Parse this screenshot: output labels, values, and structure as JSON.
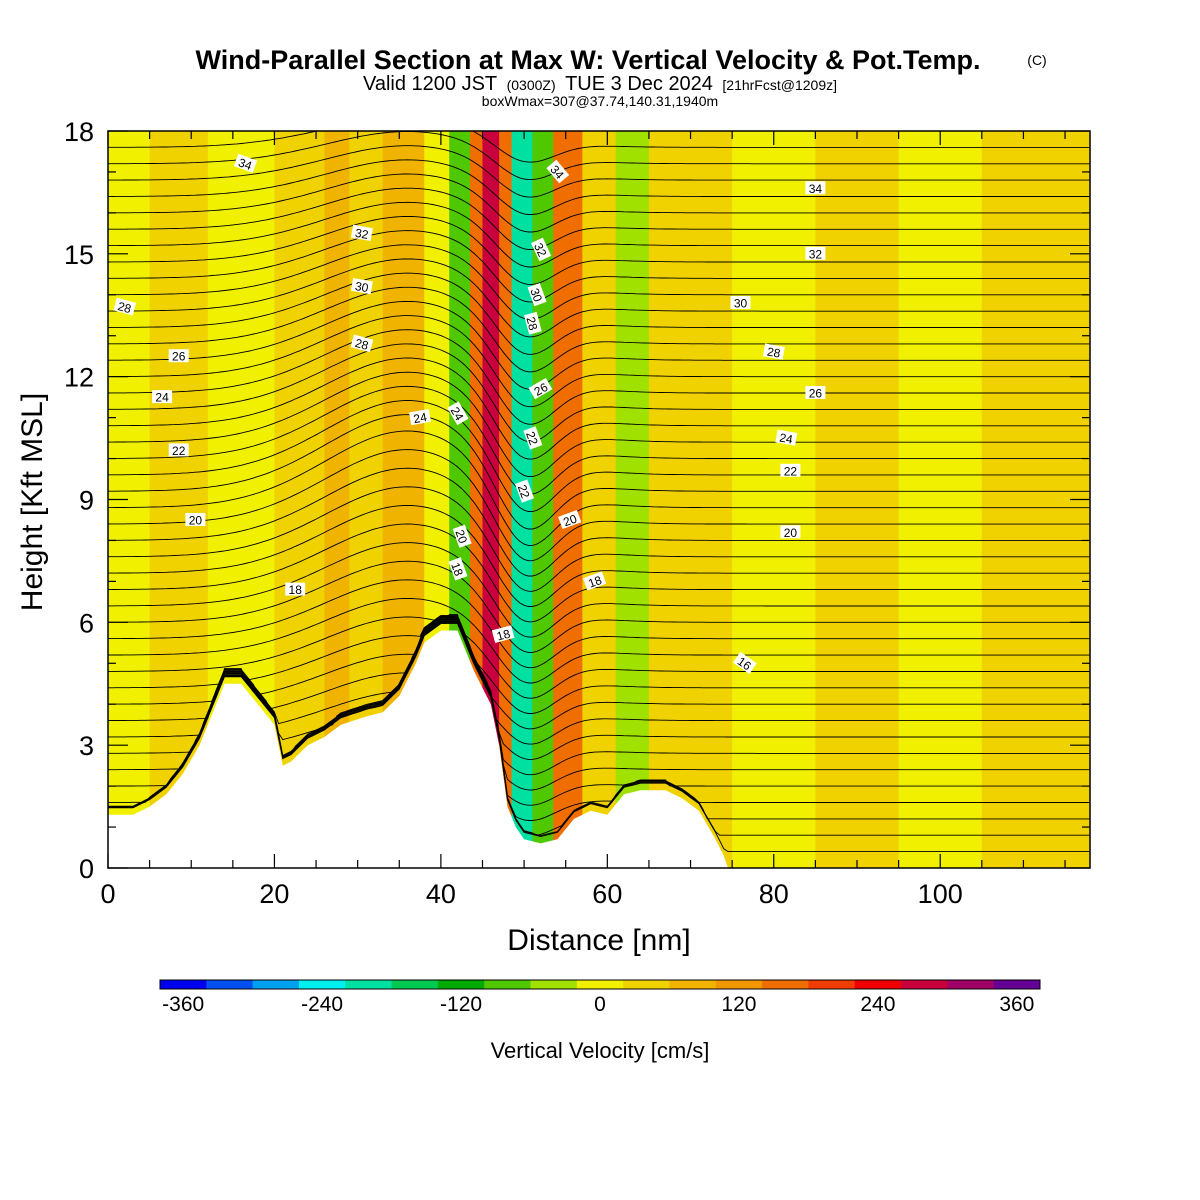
{
  "title": {
    "main": "Wind-Parallel Section at Max W: Vertical Velocity & Pot.Temp.",
    "copyright": "(C)",
    "valid": "Valid 1200 JST",
    "valid_z": "(0300Z)",
    "date": "TUE 3 Dec 2024",
    "forecast": "[21hrFcst@1209z]",
    "box": "boxWmax=307@37.74,140.31,1940m"
  },
  "axes": {
    "xlabel": "Distance [nm]",
    "ylabel": "Height [Kft MSL]",
    "xlim": [
      0,
      118
    ],
    "ylim": [
      0,
      18
    ],
    "xticks": [
      "0",
      "20",
      "40",
      "60",
      "80",
      "100"
    ],
    "yticks": [
      "0",
      "3",
      "6",
      "9",
      "12",
      "15",
      "18"
    ]
  },
  "colorbar": {
    "label": "Vertical Velocity [cm/s]",
    "ticks": [
      "-360",
      "-240",
      "-120",
      "0",
      "120",
      "240",
      "360"
    ],
    "colors": [
      "#0000f0",
      "#0050f0",
      "#00a0f0",
      "#00f0f0",
      "#00e0a0",
      "#00c850",
      "#00aa00",
      "#50c800",
      "#a0e100",
      "#f0f000",
      "#f0d200",
      "#f0b400",
      "#f09600",
      "#f06e00",
      "#f03c00",
      "#f00000",
      "#c8003c",
      "#a00064",
      "#640096"
    ]
  },
  "chart_data": {
    "type": "heatmap",
    "title": "Wind-Parallel Section at Max W: Vertical Velocity & Pot.Temp.",
    "xlabel": "Distance [nm]",
    "ylabel": "Height [Kft MSL]",
    "xlim": [
      0,
      118
    ],
    "ylim": [
      0,
      18
    ],
    "colorbar_range": [
      -380,
      380
    ],
    "colorbar_step": 40,
    "vertical_velocity_bands": [
      {
        "x_from": 0,
        "x_to": 5,
        "value": -20
      },
      {
        "x_from": 5,
        "x_to": 12,
        "value": 20
      },
      {
        "x_from": 12,
        "x_to": 20,
        "value": -20
      },
      {
        "x_from": 20,
        "x_to": 26,
        "value": 20
      },
      {
        "x_from": 26,
        "x_to": 29,
        "value": 60
      },
      {
        "x_from": 29,
        "x_to": 33,
        "value": 20
      },
      {
        "x_from": 33,
        "x_to": 38,
        "value": 60
      },
      {
        "x_from": 38,
        "x_to": 41,
        "value": -20
      },
      {
        "x_from": 41,
        "x_to": 43.5,
        "value": -100
      },
      {
        "x_from": 43.5,
        "x_to": 45,
        "value": 140
      },
      {
        "x_from": 45,
        "x_to": 47,
        "value": 260
      },
      {
        "x_from": 47,
        "x_to": 48.5,
        "value": 140
      },
      {
        "x_from": 48.5,
        "x_to": 51,
        "value": -220
      },
      {
        "x_from": 51,
        "x_to": 53.5,
        "value": -100
      },
      {
        "x_from": 53.5,
        "x_to": 57,
        "value": 140
      },
      {
        "x_from": 57,
        "x_to": 61,
        "value": 20
      },
      {
        "x_from": 61,
        "x_to": 65,
        "value": -60
      },
      {
        "x_from": 65,
        "x_to": 75,
        "value": 20
      },
      {
        "x_from": 75,
        "x_to": 85,
        "value": -20
      },
      {
        "x_from": 85,
        "x_to": 95,
        "value": 20
      },
      {
        "x_from": 95,
        "x_to": 105,
        "value": -20
      },
      {
        "x_from": 105,
        "x_to": 118,
        "value": 20
      }
    ],
    "terrain_height_kft": [
      [
        0,
        1.3
      ],
      [
        3,
        1.3
      ],
      [
        5,
        1.5
      ],
      [
        7,
        1.8
      ],
      [
        9,
        2.3
      ],
      [
        11,
        3.0
      ],
      [
        13,
        4.0
      ],
      [
        14,
        4.5
      ],
      [
        16,
        4.5
      ],
      [
        18,
        4.0
      ],
      [
        20,
        3.5
      ],
      [
        21,
        2.5
      ],
      [
        22,
        2.6
      ],
      [
        24,
        3.0
      ],
      [
        26,
        3.2
      ],
      [
        28,
        3.5
      ],
      [
        31,
        3.7
      ],
      [
        33,
        3.8
      ],
      [
        35,
        4.2
      ],
      [
        37,
        5.0
      ],
      [
        38,
        5.5
      ],
      [
        40,
        5.8
      ],
      [
        42,
        5.8
      ],
      [
        43,
        5.3
      ],
      [
        44,
        4.8
      ],
      [
        46,
        4.0
      ],
      [
        47,
        3.0
      ],
      [
        48,
        1.5
      ],
      [
        49,
        1.0
      ],
      [
        50,
        0.7
      ],
      [
        52,
        0.6
      ],
      [
        54,
        0.7
      ],
      [
        56,
        1.2
      ],
      [
        58,
        1.4
      ],
      [
        60,
        1.3
      ],
      [
        62,
        1.8
      ],
      [
        64,
        1.9
      ],
      [
        67,
        1.9
      ],
      [
        69,
        1.7
      ],
      [
        71,
        1.4
      ],
      [
        73,
        0.7
      ],
      [
        74,
        0.3
      ],
      [
        74.5,
        0.0
      ]
    ],
    "theta_levels": [
      16,
      18,
      20,
      22,
      24,
      26,
      28,
      30,
      32,
      34
    ],
    "theta_labels": [
      "34",
      "34",
      "34",
      "32",
      "32",
      "32",
      "30",
      "30",
      "30",
      "28",
      "28",
      "28",
      "28",
      "26",
      "26",
      "26",
      "24",
      "24",
      "24",
      "24",
      "22",
      "22",
      "22",
      "22",
      "20",
      "20",
      "20",
      "20",
      "18",
      "18",
      "18",
      "18",
      "16"
    ]
  }
}
